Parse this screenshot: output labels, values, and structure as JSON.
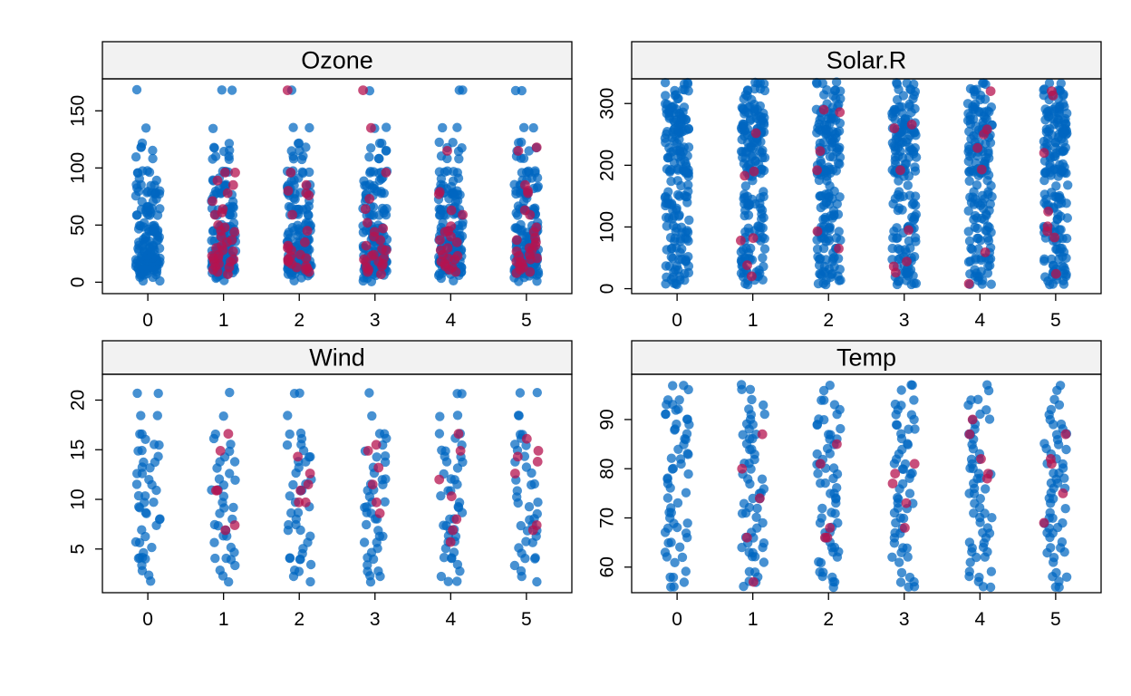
{
  "chart_data": {
    "type": "scatter",
    "description_layout": "lattice stripplot 2x2 panels",
    "x_categories": [
      "0",
      "1",
      "2",
      "3",
      "4",
      "5"
    ],
    "series_colors": {
      "observed": "#0066c0",
      "imputed": "#b5134f"
    },
    "panels": [
      {
        "title": "Ozone",
        "ylim": [
          -10,
          178
        ],
        "yticks": [
          0,
          50,
          100,
          150
        ],
        "observed_values": [
          1,
          4,
          6,
          7,
          7,
          8,
          9,
          9,
          10,
          11,
          11,
          12,
          12,
          13,
          13,
          13,
          14,
          14,
          14,
          14,
          16,
          16,
          18,
          18,
          18,
          19,
          20,
          20,
          21,
          21,
          21,
          22,
          23,
          23,
          23,
          24,
          24,
          27,
          28,
          28,
          28,
          29,
          30,
          30,
          31,
          32,
          32,
          35,
          35,
          36,
          37,
          37,
          39,
          40,
          41,
          44,
          44,
          45,
          45,
          46,
          47,
          48,
          49,
          50,
          52,
          59,
          59,
          59,
          61,
          63,
          64,
          64,
          65,
          66,
          71,
          73,
          76,
          77,
          78,
          78,
          79,
          80,
          82,
          84,
          85,
          85,
          89,
          91,
          96,
          96,
          97,
          97,
          108,
          110,
          115,
          118,
          122,
          135,
          168
        ],
        "imputed": {
          "1": [
            7,
            9,
            11,
            13,
            14,
            16,
            18,
            18,
            20,
            21,
            21,
            23,
            24,
            27,
            28,
            30,
            32,
            35,
            37,
            40,
            44,
            45,
            48,
            50,
            59,
            61,
            64,
            71,
            78,
            85,
            89,
            96,
            96
          ],
          "2": [
            9,
            11,
            12,
            13,
            14,
            16,
            18,
            19,
            20,
            21,
            23,
            24,
            28,
            30,
            32,
            35,
            45,
            59,
            76,
            78,
            80,
            85,
            96,
            168
          ],
          "3": [
            7,
            9,
            11,
            13,
            14,
            16,
            18,
            18,
            20,
            21,
            23,
            24,
            28,
            29,
            32,
            37,
            40,
            44,
            47,
            52,
            64,
            73,
            96,
            135,
            168
          ],
          "4": [
            9,
            11,
            13,
            14,
            16,
            18,
            20,
            21,
            23,
            24,
            28,
            30,
            35,
            37,
            40,
            44,
            45,
            49,
            59,
            63,
            77,
            79,
            115
          ],
          "5": [
            8,
            9,
            11,
            13,
            14,
            16,
            18,
            18,
            20,
            21,
            23,
            24,
            27,
            28,
            30,
            32,
            35,
            37,
            39,
            44,
            48,
            59,
            63,
            78,
            80,
            85,
            115,
            118
          ]
        }
      },
      {
        "title": "Solar.R",
        "ylim": [
          -8,
          340
        ],
        "yticks": [
          0,
          100,
          200,
          300
        ],
        "observed_values": [
          7,
          8,
          13,
          14,
          19,
          20,
          24,
          25,
          27,
          31,
          36,
          37,
          44,
          47,
          48,
          49,
          51,
          59,
          64,
          65,
          66,
          77,
          78,
          81,
          82,
          83,
          91,
          92,
          95,
          98,
          99,
          101,
          112,
          115,
          118,
          120,
          127,
          131,
          135,
          137,
          138,
          139,
          145,
          148,
          149,
          150,
          153,
          157,
          167,
          175,
          183,
          187,
          188,
          189,
          190,
          191,
          192,
          193,
          194,
          197,
          201,
          203,
          207,
          212,
          213,
          215,
          220,
          222,
          223,
          225,
          228,
          229,
          230,
          236,
          237,
          238,
          242,
          244,
          248,
          250,
          252,
          253,
          254,
          255,
          256,
          258,
          259,
          260,
          264,
          266,
          267,
          269,
          273,
          274,
          275,
          276,
          279,
          284,
          285,
          286,
          287,
          290,
          291,
          294,
          295,
          299,
          307,
          313,
          314,
          320,
          322,
          323,
          332,
          334
        ],
        "imputed": {
          "1": [
            20,
            38,
            78,
            82,
            183,
            190,
            252
          ],
          "2": [
            65,
            93,
            192,
            223,
            286,
            290
          ],
          "3": [
            26,
            36,
            44,
            95,
            192,
            260,
            266
          ],
          "4": [
            8,
            59,
            193,
            228,
            250,
            258,
            320
          ],
          "5": [
            24,
            83,
            93,
            101,
            125,
            220,
            313,
            320
          ]
        }
      },
      {
        "title": "Wind",
        "ylim": [
          0.6,
          22.6
        ],
        "yticks": [
          5,
          10,
          15,
          20
        ],
        "observed_values": [
          1.7,
          2.3,
          2.8,
          3.4,
          4.0,
          4.1,
          4.6,
          5.1,
          5.7,
          6.3,
          6.9,
          7.4,
          8.0,
          8.6,
          9.2,
          9.7,
          10.3,
          10.9,
          11.5,
          12.0,
          12.6,
          13.2,
          13.8,
          14.3,
          14.9,
          15.5,
          16.1,
          16.6,
          18.4,
          20.7
        ],
        "imputed": {
          "1": [
            6.9,
            7.4,
            10.9,
            10.9,
            14.9,
            16.6
          ],
          "2": [
            9.7,
            9.7,
            10.9,
            11.5,
            12.6,
            14.3
          ],
          "3": [
            8.6,
            9.7,
            11.5,
            13.2,
            14.9,
            15.5
          ],
          "4": [
            5.7,
            6.9,
            8.0,
            10.3,
            12.0,
            14.9,
            16.6
          ],
          "5": [
            6.9,
            7.4,
            12.6,
            13.8,
            14.3,
            14.9,
            16.1
          ]
        }
      },
      {
        "title": "Temp",
        "ylim": [
          54.8,
          99.2
        ],
        "yticks": [
          60,
          70,
          80,
          90
        ],
        "observed_values": [
          56,
          57,
          58,
          59,
          61,
          62,
          63,
          64,
          65,
          66,
          67,
          68,
          69,
          70,
          71,
          72,
          73,
          74,
          75,
          76,
          77,
          78,
          79,
          80,
          81,
          82,
          83,
          84,
          85,
          86,
          87,
          88,
          89,
          90,
          91,
          92,
          93,
          94,
          96,
          97
        ],
        "imputed": {
          "1": [
            57,
            66,
            74,
            80,
            87
          ],
          "2": [
            66,
            66,
            68,
            81,
            85
          ],
          "3": [
            68,
            73,
            77,
            79,
            81
          ],
          "4": [
            78,
            79,
            82,
            87,
            90
          ],
          "5": [
            69,
            75,
            81,
            82,
            87
          ]
        }
      }
    ]
  }
}
